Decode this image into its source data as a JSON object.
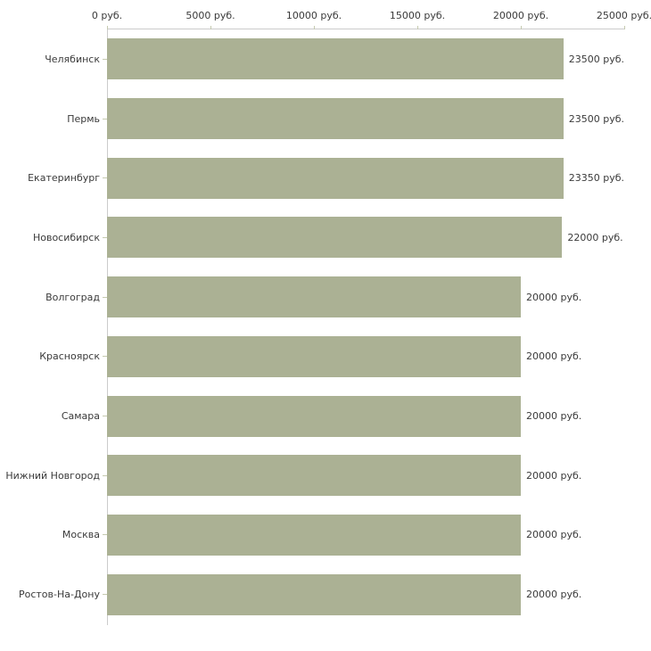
{
  "chart_data": {
    "type": "bar",
    "orientation": "horizontal",
    "title": "",
    "xlabel": "",
    "ylabel": "",
    "xlim": [
      0,
      25000
    ],
    "grid": false,
    "legend": false,
    "unit_suffix": " руб.",
    "x_ticks": [
      0,
      5000,
      10000,
      15000,
      20000,
      25000
    ],
    "x_tick_labels": [
      "0 руб.",
      "5000 руб.",
      "10000 руб.",
      "15000 руб.",
      "20000 руб.",
      "25000 руб."
    ],
    "categories": [
      "Челябинск",
      "Пермь",
      "Екатеринбург",
      "Новосибирск",
      "Волгоград",
      "Красноярск",
      "Самара",
      "Нижний Новгород",
      "Москва",
      "Ростов-На-Дону"
    ],
    "values": [
      23500,
      23500,
      23350,
      22000,
      20000,
      20000,
      20000,
      20000,
      20000,
      20000
    ],
    "value_labels": [
      "23500 руб.",
      "23500 руб.",
      "23350 руб.",
      "22000 руб.",
      "20000 руб.",
      "20000 руб.",
      "20000 руб.",
      "20000 руб.",
      "20000 руб.",
      "20000 руб."
    ],
    "colors": {
      "bar": "#abb194",
      "axis_line": "#cccccc",
      "tick_mark": "#c5cab0",
      "text": "#3a3a3a",
      "background": "#ffffff"
    }
  }
}
